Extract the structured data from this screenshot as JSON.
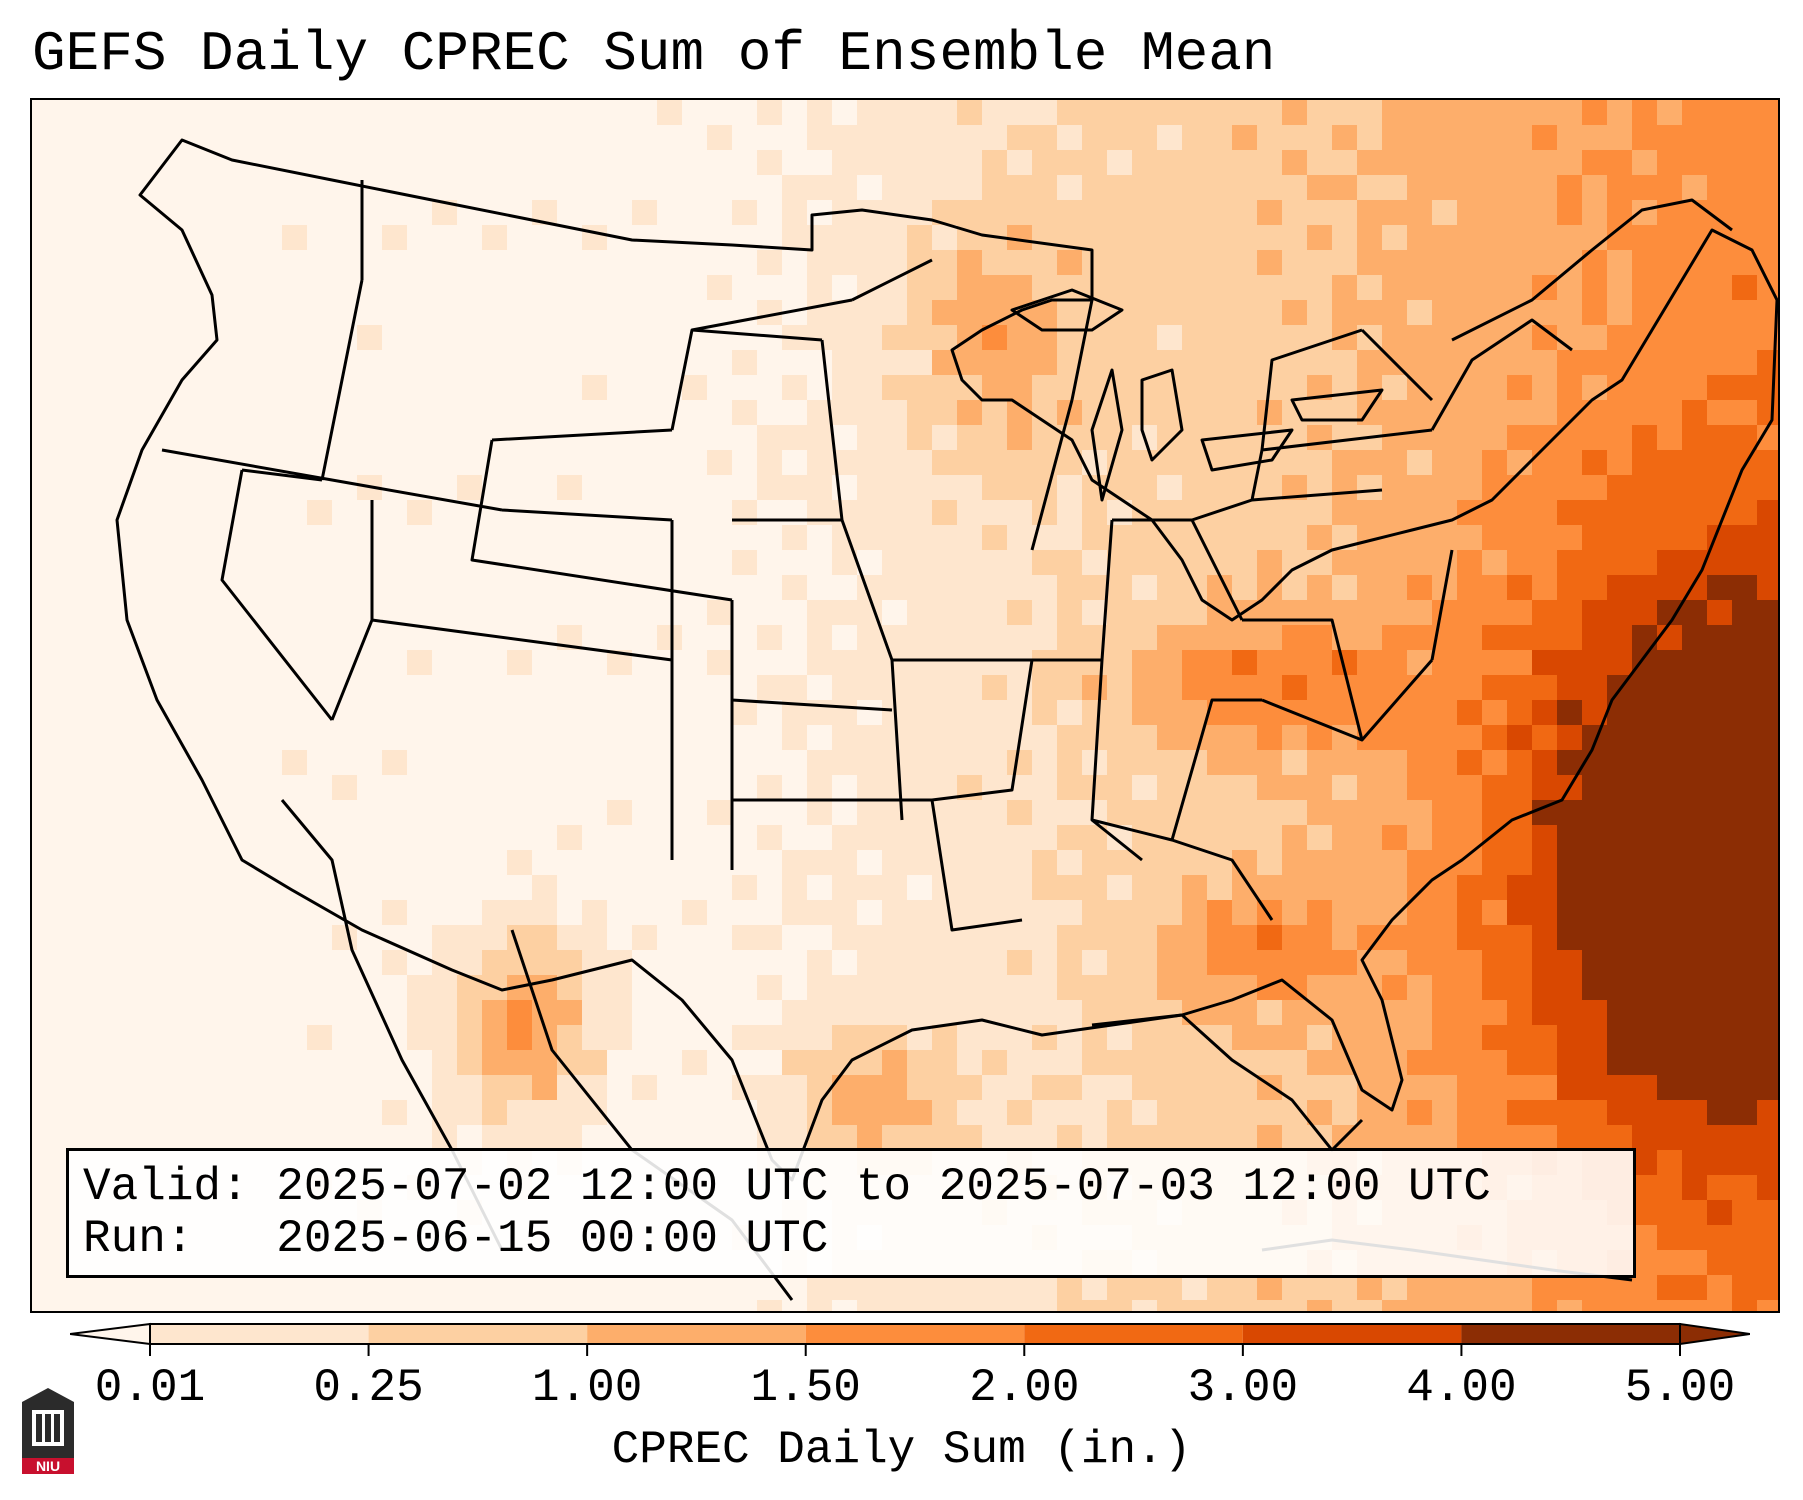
{
  "title": "GEFS Daily CPREC Sum of Ensemble Mean",
  "info": {
    "valid_label": "Valid:",
    "valid_value": "2025-07-02 12:00 UTC to 2025-07-03 12:00 UTC",
    "run_label": "Run:",
    "run_value": "2025-06-15 00:00 UTC"
  },
  "colorbar": {
    "label": "CPREC Daily Sum (in.)",
    "ticks": [
      "0.01",
      "0.25",
      "1.00",
      "1.50",
      "2.00",
      "3.00",
      "4.00",
      "5.00"
    ],
    "colors": [
      "#fff5eb",
      "#fee6ce",
      "#fdd0a2",
      "#fdae6b",
      "#fd8d3c",
      "#f16913",
      "#d94801",
      "#8c2d04"
    ],
    "extend": "both"
  },
  "map": {
    "region": "CONUS",
    "precip_palette": {
      "0.01": "#fff5eb",
      "0.25": "#fee6ce",
      "1.00": "#fdd0a2",
      "1.50": "#fdae6b",
      "2.00": "#fd8d3c",
      "3.00": "#f16913",
      "4.00": "#d94801",
      "5.00": "#8c2d04"
    },
    "boundary_color": "#000000"
  },
  "logo": {
    "name": "NIU",
    "text": "NIU",
    "color": "#c8102e"
  }
}
